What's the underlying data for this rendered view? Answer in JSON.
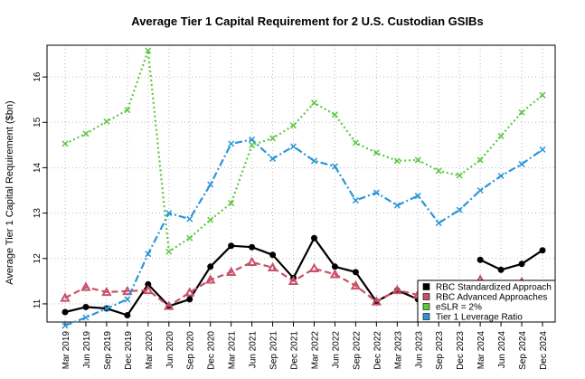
{
  "chart_data": {
    "type": "line",
    "title": "Average Tier 1 Capital Requirement for 2 U.S. Custodian GSIBs",
    "xlabel": "",
    "ylabel": "Average Tier 1 Capital Requirement ($bn)",
    "ylim": [
      10.6,
      16.7
    ],
    "yticks": [
      11,
      12,
      13,
      14,
      15,
      16
    ],
    "grid": true,
    "legend_position": "bottom-right",
    "categories": [
      "Mar 2019",
      "Jun 2019",
      "Sep 2019",
      "Dec 2019",
      "Mar 2020",
      "Jun 2020",
      "Sep 2020",
      "Dec 2020",
      "Mar 2021",
      "Jun 2021",
      "Sep 2021",
      "Dec 2021",
      "Mar 2022",
      "Jun 2022",
      "Sep 2022",
      "Dec 2022",
      "Mar 2023",
      "Jun 2023",
      "Sep 2023",
      "Dec 2023",
      "Mar 2024",
      "Jun 2024",
      "Sep 2024",
      "Dec 2024"
    ],
    "series": [
      {
        "name": "RBC Standardized Approach",
        "color": "#000000",
        "style": "solid",
        "marker": "circle",
        "values": [
          10.82,
          10.93,
          10.9,
          10.75,
          11.43,
          10.95,
          11.1,
          11.82,
          12.28,
          12.25,
          12.08,
          11.57,
          12.45,
          11.82,
          11.7,
          11.05,
          11.3,
          11.1,
          null,
          null,
          11.97,
          11.75,
          11.88,
          12.18
        ]
      },
      {
        "name": "RBC Advanced Approaches",
        "color": "#c8506a",
        "style": "dashed",
        "marker": "triangle",
        "values": [
          11.13,
          11.37,
          11.26,
          11.28,
          11.3,
          10.95,
          11.25,
          11.53,
          11.7,
          11.92,
          11.8,
          11.5,
          11.78,
          11.65,
          11.4,
          11.05,
          11.3,
          11.2,
          null,
          null,
          11.53,
          11.33,
          11.48,
          11.4
        ]
      },
      {
        "name": "eSLR = 2%",
        "color": "#5cc840",
        "style": "dotted",
        "marker": "x",
        "values": [
          14.53,
          14.75,
          15.02,
          15.27,
          16.58,
          12.15,
          12.45,
          12.85,
          13.22,
          14.5,
          14.65,
          14.93,
          15.43,
          15.17,
          14.55,
          14.33,
          14.15,
          14.17,
          13.93,
          13.83,
          14.17,
          14.7,
          15.22,
          15.6
        ]
      },
      {
        "name": "Tier 1 Leverage Ratio",
        "color": "#2a96d8",
        "style": "dotdash",
        "marker": "x",
        "values": [
          10.52,
          10.7,
          10.9,
          11.1,
          12.1,
          13.0,
          12.87,
          13.63,
          14.53,
          14.62,
          14.2,
          14.47,
          14.15,
          14.03,
          13.28,
          13.45,
          13.17,
          13.38,
          12.78,
          13.07,
          13.5,
          13.82,
          14.08,
          14.4
        ]
      }
    ]
  }
}
